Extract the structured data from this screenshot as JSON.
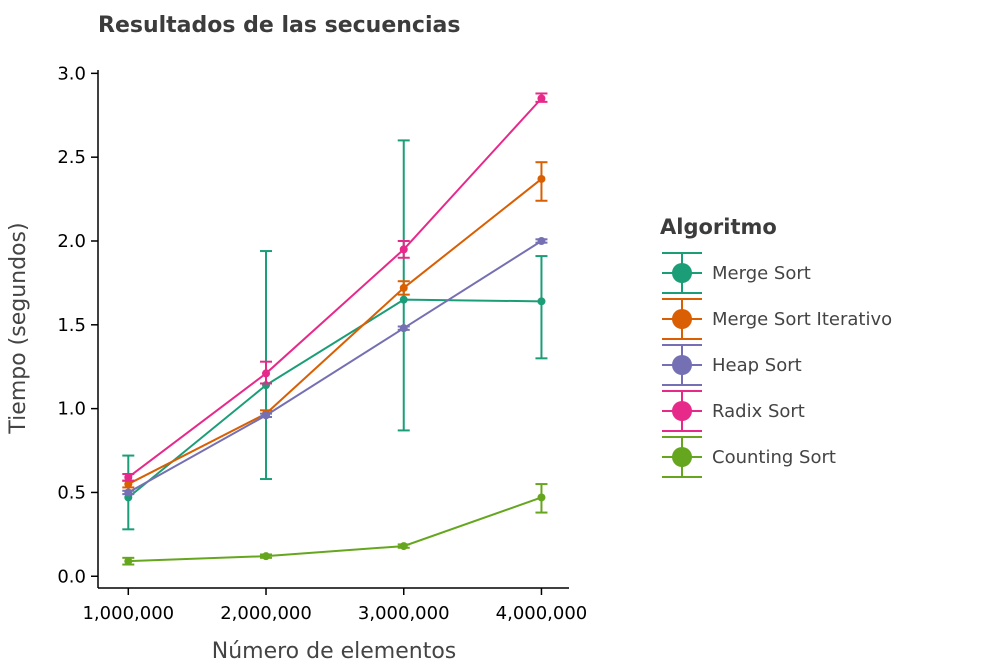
{
  "chart_data": {
    "type": "line",
    "title": "Resultados de las secuencias",
    "xlabel": "Número de elementos",
    "ylabel": "Tiempo (segundos)",
    "x": [
      1000000,
      2000000,
      3000000,
      4000000
    ],
    "x_tick_labels": [
      "1,000,000",
      "2,000,000",
      "3,000,000",
      "4,000,000"
    ],
    "y_ticks": [
      0.0,
      0.5,
      1.0,
      1.5,
      2.0,
      2.5,
      3.0
    ],
    "y_tick_labels": [
      "0.0",
      "0.5",
      "1.0",
      "1.5",
      "2.0",
      "2.5",
      "3.0"
    ],
    "xlim": [
      780000,
      4200000
    ],
    "ylim": [
      -0.07,
      3.02
    ],
    "grid": false,
    "error_bars": true,
    "legend": {
      "title": "Algoritmo",
      "position": "right"
    },
    "series": [
      {
        "name": "Merge Sort",
        "color": "#1b9e77",
        "values": [
          0.47,
          1.14,
          1.65,
          1.64
        ],
        "err_low": [
          0.28,
          0.58,
          0.87,
          1.3
        ],
        "err_high": [
          0.72,
          1.94,
          2.6,
          1.91
        ]
      },
      {
        "name": "Merge Sort Iterativo",
        "color": "#d95f02",
        "values": [
          0.55,
          0.97,
          1.72,
          2.37
        ],
        "err_low": [
          0.53,
          0.95,
          1.68,
          2.24
        ],
        "err_high": [
          0.57,
          0.99,
          1.76,
          2.47
        ]
      },
      {
        "name": "Heap Sort",
        "color": "#7570b3",
        "values": [
          0.5,
          0.96,
          1.48,
          2.0
        ],
        "err_low": [
          0.49,
          0.95,
          1.47,
          1.99
        ],
        "err_high": [
          0.51,
          0.97,
          1.49,
          2.01
        ]
      },
      {
        "name": "Radix Sort",
        "color": "#e7298a",
        "values": [
          0.59,
          1.21,
          1.95,
          2.85
        ],
        "err_low": [
          0.57,
          1.15,
          1.9,
          2.83
        ],
        "err_high": [
          0.61,
          1.28,
          2.0,
          2.88
        ]
      },
      {
        "name": "Counting Sort",
        "color": "#66a61e",
        "values": [
          0.09,
          0.12,
          0.18,
          0.47
        ],
        "err_low": [
          0.07,
          0.11,
          0.17,
          0.38
        ],
        "err_high": [
          0.11,
          0.13,
          0.19,
          0.55
        ]
      }
    ]
  }
}
